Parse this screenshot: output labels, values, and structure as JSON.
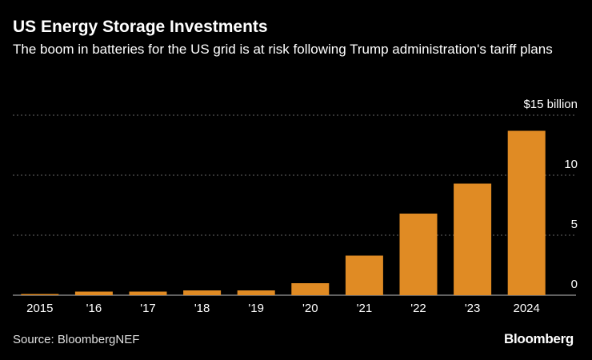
{
  "header": {
    "title": "US Energy Storage Investments",
    "subtitle": "The boom in batteries for the US grid is at risk following Trump administration's tariff plans"
  },
  "footer": {
    "source": "Source: BloombergNEF",
    "logo": "Bloomberg"
  },
  "colors": {
    "background": "#000000",
    "bar": "#e08b24",
    "grid": "#666666",
    "text": "#ffffff"
  },
  "chart_data": {
    "type": "bar",
    "title": "US Energy Storage Investments",
    "xlabel": "",
    "ylabel": "$ billion",
    "ylim": [
      0,
      15
    ],
    "yticks": [
      0,
      5,
      10,
      15
    ],
    "ytick_labels": [
      "0",
      "5",
      "10",
      "$15 billion"
    ],
    "grid": true,
    "categories": [
      "2015",
      "'16",
      "'17",
      "'18",
      "'19",
      "'20",
      "'21",
      "'22",
      "'23",
      "2024"
    ],
    "values": [
      0.1,
      0.3,
      0.3,
      0.4,
      0.4,
      1.0,
      3.3,
      6.8,
      9.3,
      13.7
    ]
  }
}
